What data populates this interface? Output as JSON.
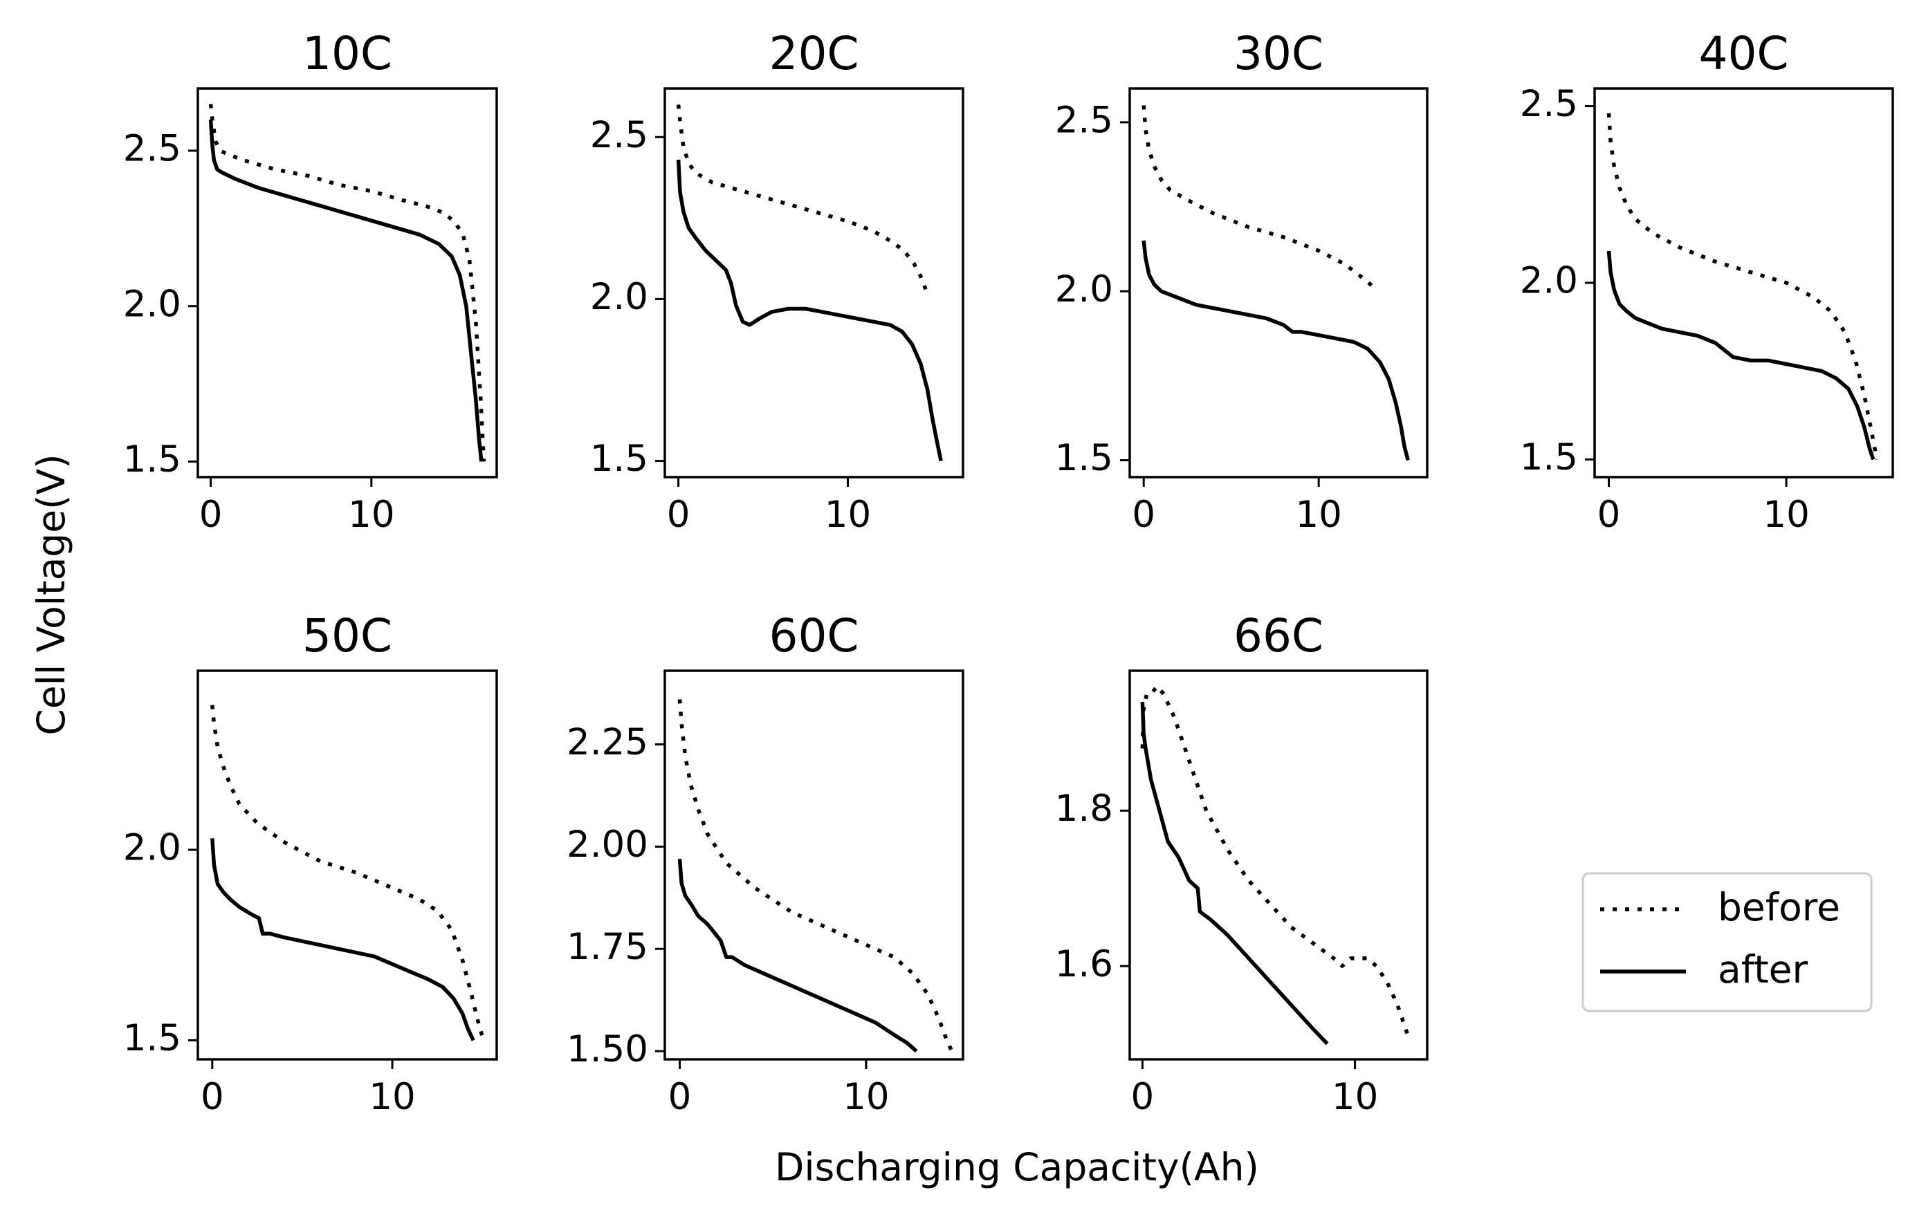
{
  "figure": {
    "ylabel": "Cell Voltage(V)",
    "xlabel": "Discharging Capacity(Ah)"
  },
  "legend": {
    "location": "lower-right",
    "entries": [
      {
        "label": "before",
        "style": "dotted"
      },
      {
        "label": "after",
        "style": "solid"
      }
    ]
  },
  "chart_data": [
    {
      "type": "line",
      "title": "10C",
      "xlim": [
        -0.8,
        17.8
      ],
      "ylim": [
        1.45,
        2.7
      ],
      "xticks": [
        0,
        10
      ],
      "xtick_labels": [
        "0",
        "10"
      ],
      "yticks": [
        1.5,
        2.0,
        2.5
      ],
      "ytick_labels": [
        "1.5",
        "2.0",
        "2.5"
      ],
      "series": [
        {
          "name": "before",
          "x": [
            0,
            0.1,
            0.3,
            0.6,
            1,
            2,
            4,
            6,
            8,
            10,
            12,
            13.5,
            14.5,
            15.2,
            15.7,
            16.1,
            16.5,
            16.8,
            17
          ],
          "y": [
            2.65,
            2.6,
            2.53,
            2.5,
            2.49,
            2.47,
            2.44,
            2.42,
            2.39,
            2.37,
            2.34,
            2.32,
            2.3,
            2.27,
            2.23,
            2.15,
            1.95,
            1.7,
            1.5
          ]
        },
        {
          "name": "after",
          "x": [
            0,
            0.1,
            0.2,
            0.4,
            0.7,
            1.5,
            3,
            5,
            7,
            9,
            11,
            13,
            14.2,
            15,
            15.5,
            15.9,
            16.2,
            16.5,
            16.7,
            16.85
          ],
          "y": [
            2.6,
            2.52,
            2.47,
            2.44,
            2.43,
            2.41,
            2.38,
            2.35,
            2.32,
            2.29,
            2.26,
            2.23,
            2.2,
            2.16,
            2.1,
            2.0,
            1.85,
            1.7,
            1.57,
            1.5
          ]
        }
      ]
    },
    {
      "type": "line",
      "title": "20C",
      "xlim": [
        -0.8,
        16.8
      ],
      "ylim": [
        1.45,
        2.65
      ],
      "xticks": [
        0,
        10
      ],
      "xtick_labels": [
        "0",
        "10"
      ],
      "yticks": [
        1.5,
        2.0,
        2.5
      ],
      "ytick_labels": [
        "1.5",
        "2.0",
        "2.5"
      ],
      "series": [
        {
          "name": "before",
          "x": [
            0,
            0.1,
            0.3,
            0.6,
            1,
            2,
            4,
            6,
            8,
            10,
            11.5,
            12.5,
            13.3,
            13.9,
            14.3,
            14.6
          ],
          "y": [
            2.6,
            2.55,
            2.47,
            2.42,
            2.39,
            2.36,
            2.33,
            2.3,
            2.27,
            2.24,
            2.21,
            2.18,
            2.15,
            2.11,
            2.07,
            2.03
          ]
        },
        {
          "name": "after",
          "x": [
            0,
            0.1,
            0.3,
            0.6,
            1,
            1.6,
            2.2,
            2.8,
            3.1,
            3.4,
            3.8,
            4.2,
            4.8,
            5.5,
            6.5,
            7.5,
            8.5,
            9.5,
            10.5,
            11.5,
            12.5,
            13.2,
            13.8,
            14.3,
            14.7,
            15,
            15.3,
            15.5
          ],
          "y": [
            2.43,
            2.33,
            2.27,
            2.22,
            2.19,
            2.15,
            2.12,
            2.09,
            2.05,
            1.98,
            1.93,
            1.92,
            1.94,
            1.96,
            1.97,
            1.97,
            1.96,
            1.95,
            1.94,
            1.93,
            1.92,
            1.9,
            1.86,
            1.8,
            1.72,
            1.63,
            1.55,
            1.5
          ]
        }
      ]
    },
    {
      "type": "line",
      "title": "30C",
      "xlim": [
        -0.8,
        16.2
      ],
      "ylim": [
        1.45,
        2.6
      ],
      "xticks": [
        0,
        10
      ],
      "xtick_labels": [
        "0",
        "10"
      ],
      "yticks": [
        1.5,
        2.0,
        2.5
      ],
      "ytick_labels": [
        "1.5",
        "2.0",
        "2.5"
      ],
      "series": [
        {
          "name": "before",
          "x": [
            0,
            0.1,
            0.3,
            0.6,
            1,
            1.5,
            2.5,
            4,
            6,
            8,
            10,
            11.5,
            12.5,
            13.2
          ],
          "y": [
            2.55,
            2.48,
            2.42,
            2.37,
            2.33,
            2.3,
            2.27,
            2.23,
            2.19,
            2.16,
            2.12,
            2.08,
            2.04,
            2.01
          ]
        },
        {
          "name": "after",
          "x": [
            0,
            0.1,
            0.3,
            0.6,
            1,
            2,
            3,
            4,
            5,
            6,
            7,
            8,
            8.5,
            9,
            10,
            11,
            12,
            12.8,
            13.5,
            14,
            14.4,
            14.7,
            14.9,
            15.1
          ],
          "y": [
            2.15,
            2.1,
            2.05,
            2.02,
            2.0,
            1.98,
            1.96,
            1.95,
            1.94,
            1.93,
            1.92,
            1.9,
            1.88,
            1.88,
            1.87,
            1.86,
            1.85,
            1.83,
            1.79,
            1.74,
            1.67,
            1.6,
            1.54,
            1.5
          ]
        }
      ]
    },
    {
      "type": "line",
      "title": "40C",
      "xlim": [
        -0.8,
        16.0
      ],
      "ylim": [
        1.45,
        2.55
      ],
      "xticks": [
        0,
        10
      ],
      "xtick_labels": [
        "0",
        "10"
      ],
      "yticks": [
        1.5,
        2.0,
        2.5
      ],
      "ytick_labels": [
        "1.5",
        "2.0",
        "2.5"
      ],
      "series": [
        {
          "name": "before",
          "x": [
            0,
            0.1,
            0.3,
            0.6,
            1,
            1.5,
            2.5,
            4,
            6,
            8,
            10,
            11.5,
            12.5,
            13.3,
            13.9,
            14.4,
            14.8,
            15.1
          ],
          "y": [
            2.48,
            2.4,
            2.33,
            2.27,
            2.22,
            2.18,
            2.14,
            2.1,
            2.06,
            2.03,
            2.0,
            1.96,
            1.92,
            1.86,
            1.78,
            1.68,
            1.58,
            1.5
          ]
        },
        {
          "name": "after",
          "x": [
            0,
            0.1,
            0.3,
            0.6,
            1,
            1.5,
            2,
            3,
            4,
            5,
            6,
            6.5,
            7,
            8,
            9,
            10,
            11,
            12,
            12.8,
            13.5,
            14,
            14.4,
            14.7,
            14.9
          ],
          "y": [
            2.09,
            2.03,
            1.98,
            1.94,
            1.92,
            1.9,
            1.89,
            1.87,
            1.86,
            1.85,
            1.83,
            1.81,
            1.79,
            1.78,
            1.78,
            1.77,
            1.76,
            1.75,
            1.73,
            1.7,
            1.65,
            1.59,
            1.53,
            1.5
          ]
        }
      ]
    },
    {
      "type": "line",
      "title": "50C",
      "xlim": [
        -0.8,
        15.8
      ],
      "ylim": [
        1.45,
        2.47
      ],
      "xticks": [
        0,
        10
      ],
      "xtick_labels": [
        "0",
        "10"
      ],
      "yticks": [
        1.5,
        2.0
      ],
      "ytick_labels": [
        "1.5",
        "2.0"
      ],
      "series": [
        {
          "name": "before",
          "x": [
            0,
            0.1,
            0.3,
            0.6,
            1,
            1.5,
            2.5,
            4,
            6,
            8,
            10,
            11.5,
            12.5,
            13.3,
            13.9,
            14.4,
            14.7,
            15
          ],
          "y": [
            2.38,
            2.33,
            2.27,
            2.22,
            2.17,
            2.12,
            2.07,
            2.02,
            1.97,
            1.94,
            1.9,
            1.87,
            1.84,
            1.79,
            1.71,
            1.62,
            1.56,
            1.51
          ]
        },
        {
          "name": "after",
          "x": [
            0,
            0.1,
            0.3,
            0.6,
            1,
            1.5,
            2.2,
            2.6,
            2.8,
            3.2,
            4,
            5,
            6,
            7,
            8,
            9,
            10,
            11,
            12,
            12.8,
            13.4,
            13.9,
            14.2,
            14.5
          ],
          "y": [
            2.03,
            1.96,
            1.91,
            1.89,
            1.87,
            1.85,
            1.83,
            1.82,
            1.78,
            1.78,
            1.77,
            1.76,
            1.75,
            1.74,
            1.73,
            1.72,
            1.7,
            1.68,
            1.66,
            1.64,
            1.61,
            1.57,
            1.53,
            1.5
          ]
        }
      ]
    },
    {
      "type": "line",
      "title": "60C",
      "xlim": [
        -0.8,
        15.2
      ],
      "ylim": [
        1.48,
        2.43
      ],
      "xticks": [
        0,
        10
      ],
      "xtick_labels": [
        "0",
        "10"
      ],
      "yticks": [
        1.5,
        1.75,
        2.0,
        2.25
      ],
      "ytick_labels": [
        "1.50",
        "1.75",
        "2.00",
        "2.25"
      ],
      "series": [
        {
          "name": "before",
          "x": [
            0,
            0.1,
            0.3,
            0.6,
            1,
            1.5,
            2.5,
            4,
            6,
            8,
            10,
            11.5,
            12.5,
            13.3,
            13.9,
            14.3,
            14.6
          ],
          "y": [
            2.36,
            2.3,
            2.22,
            2.15,
            2.09,
            2.03,
            1.96,
            1.9,
            1.84,
            1.8,
            1.76,
            1.73,
            1.69,
            1.64,
            1.58,
            1.53,
            1.5
          ]
        },
        {
          "name": "after",
          "x": [
            0,
            0.1,
            0.3,
            0.6,
            1,
            1.5,
            2.2,
            2.5,
            2.8,
            3.5,
            5,
            7,
            9,
            10.5,
            11.5,
            12.2,
            12.7
          ],
          "y": [
            1.97,
            1.91,
            1.88,
            1.86,
            1.83,
            1.81,
            1.77,
            1.73,
            1.73,
            1.71,
            1.68,
            1.64,
            1.6,
            1.57,
            1.54,
            1.52,
            1.5
          ]
        }
      ]
    },
    {
      "type": "line",
      "title": "66C",
      "xlim": [
        -0.6,
        13.4
      ],
      "ylim": [
        1.48,
        1.98
      ],
      "xticks": [
        0,
        10
      ],
      "xtick_labels": [
        "0",
        "10"
      ],
      "yticks": [
        1.6,
        1.8
      ],
      "ytick_labels": [
        "1.6",
        "1.8"
      ],
      "series": [
        {
          "name": "before",
          "x": [
            0,
            0.05,
            0.2,
            0.4,
            0.7,
            1,
            1.5,
            2,
            2.5,
            3,
            4,
            5,
            6,
            7,
            8,
            9,
            9.4,
            9.8,
            10.2,
            10.6,
            11,
            11.5,
            12,
            12.5
          ],
          "y": [
            1.88,
            1.93,
            1.95,
            1.95,
            1.96,
            1.95,
            1.92,
            1.88,
            1.84,
            1.8,
            1.75,
            1.71,
            1.68,
            1.65,
            1.63,
            1.61,
            1.6,
            1.61,
            1.61,
            1.61,
            1.6,
            1.58,
            1.55,
            1.51
          ]
        },
        {
          "name": "after",
          "x": [
            0,
            0.05,
            0.15,
            0.4,
            0.8,
            1.2,
            1.7,
            2.2,
            2.6,
            2.7,
            3.2,
            4,
            5,
            6,
            7,
            8,
            8.7
          ],
          "y": [
            1.94,
            1.9,
            1.88,
            1.84,
            1.8,
            1.76,
            1.74,
            1.71,
            1.7,
            1.67,
            1.66,
            1.64,
            1.61,
            1.58,
            1.55,
            1.52,
            1.5
          ]
        }
      ]
    }
  ]
}
